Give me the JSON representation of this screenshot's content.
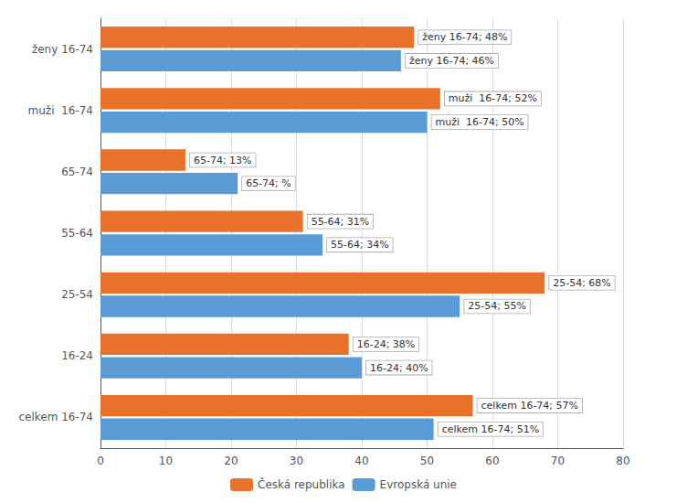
{
  "chart_data": {
    "type": "bar",
    "orientation": "horizontal",
    "categories": [
      "celkem 16-74",
      "16-24",
      "25-54",
      "55-64",
      "65-74",
      "muži  16-74",
      "ženy 16-74"
    ],
    "series": [
      {
        "name": "Česká republika",
        "color": "#E8722A",
        "values": [
          57,
          38,
          68,
          31,
          13,
          52,
          48
        ],
        "annotations": [
          "celkem 16-74; 57%",
          "16-24; 38%",
          "25-54; 68%",
          "55-64; 31%",
          "65-74; 13%",
          "muži  16-74; 52%",
          "ženy 16-74; 48%"
        ]
      },
      {
        "name": "Evropská unie",
        "color": "#5B9BD5",
        "values": [
          51,
          40,
          55,
          34,
          21,
          50,
          46
        ],
        "annotations": [
          "celkem 16-74; 51%",
          "16-24; 40%",
          "25-54; 55%",
          "55-64; 34%",
          "65-74; %",
          "muži  16-74; 50%",
          "ženy 16-74; 46%"
        ]
      }
    ],
    "xlim": [
      0,
      80
    ],
    "xticks": [
      0,
      10,
      20,
      30,
      40,
      50,
      60,
      70,
      80
    ],
    "grid": true,
    "legend": "bottom"
  }
}
